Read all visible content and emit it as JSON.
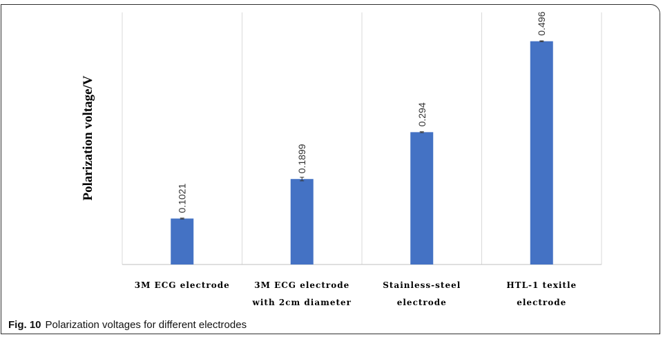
{
  "caption": {
    "label": "Fig. 10",
    "text": "Polarization voltages for different electrodes"
  },
  "colors": {
    "bar": "#4472C4",
    "grid": "#d9d9d9",
    "axis": "#bfbfbf"
  },
  "chart_data": {
    "type": "bar",
    "ylabel": "Polarization voltage/V",
    "xlabel": "",
    "categories": [
      [
        "3M ECG electrode"
      ],
      [
        "3M ECG electrode",
        "with 2cm diameter"
      ],
      [
        "Stainless-steel",
        "electrode"
      ],
      [
        "HTL-1 texitle",
        "electrode"
      ]
    ],
    "values": [
      0.1021,
      0.1899,
      0.294,
      0.496
    ],
    "data_labels": [
      "0.1021",
      "0.1899",
      "0.294",
      "0.496"
    ],
    "error": [
      0.001,
      0.004,
      0.001,
      0.001
    ],
    "ylim": [
      0,
      0.56
    ],
    "grid": "vertical category separators",
    "legend": "none"
  }
}
